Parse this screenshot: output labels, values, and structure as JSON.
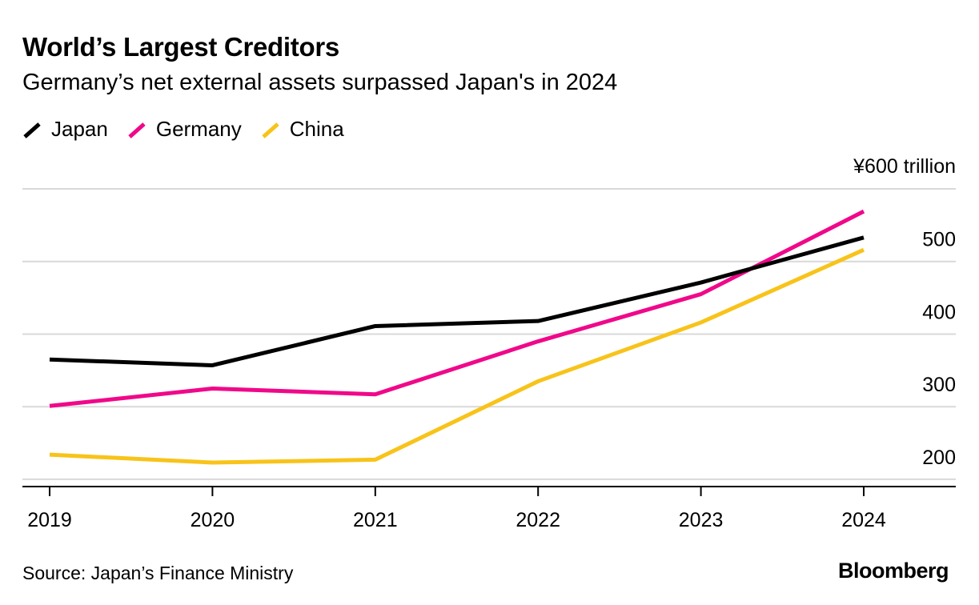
{
  "header": {
    "title": "World’s Largest Creditors",
    "subtitle": "Germany’s net external assets surpassed Japan's in 2024"
  },
  "footer": {
    "source": "Source: Japan’s Finance Ministry",
    "logo": "Bloomberg"
  },
  "chart_data": {
    "type": "line",
    "x": [
      "2019",
      "2020",
      "2021",
      "2022",
      "2023",
      "2024"
    ],
    "series": [
      {
        "name": "Japan",
        "color": "#000000",
        "values": [
          365,
          357,
          411,
          418,
          471,
          533
        ]
      },
      {
        "name": "Germany",
        "color": "#f0088a",
        "values": [
          301,
          325,
          317,
          390,
          455,
          569
        ]
      },
      {
        "name": "China",
        "color": "#f8c31a",
        "values": [
          234,
          223,
          227,
          335,
          416,
          516
        ]
      }
    ],
    "y_axis": {
      "ticks": [
        200,
        300,
        400,
        500,
        600
      ],
      "tick_labels": [
        "200",
        "300",
        "400",
        "500",
        "¥600 trillion"
      ],
      "position": "right",
      "range": [
        190,
        600
      ]
    },
    "grid": true,
    "legend_position": "top-left"
  }
}
